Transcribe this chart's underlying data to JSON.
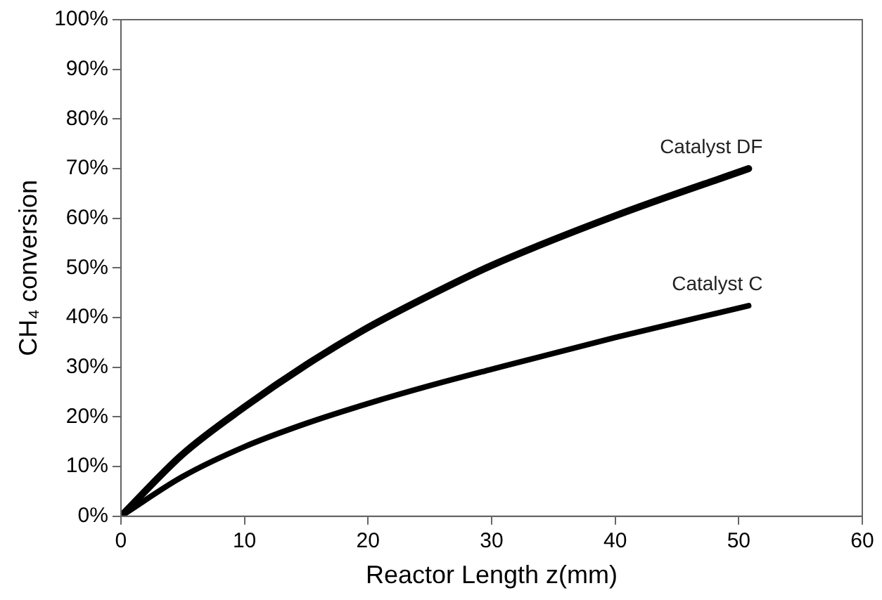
{
  "chart_data": {
    "type": "line",
    "xlabel": "Reactor Length z(mm)",
    "ylabel": "CH₄ conversion",
    "xlim": [
      0,
      60
    ],
    "xticks": [
      0,
      10,
      20,
      30,
      40,
      50,
      60
    ],
    "ylim": [
      0,
      100
    ],
    "yticks": [
      {
        "value": 0,
        "label": "0%"
      },
      {
        "value": 10,
        "label": "10%"
      },
      {
        "value": 20,
        "label": "20%"
      },
      {
        "value": 30,
        "label": "30%"
      },
      {
        "value": 40,
        "label": "40%"
      },
      {
        "value": 50,
        "label": "50%"
      },
      {
        "value": 60,
        "label": "60%"
      },
      {
        "value": 70,
        "label": "70%"
      },
      {
        "value": 80,
        "label": "80%"
      },
      {
        "value": 90,
        "label": "90%"
      },
      {
        "value": 100,
        "label": "100%"
      }
    ],
    "grid": false,
    "legend": false,
    "marker": "none",
    "line_style": "solid",
    "series": [
      {
        "name": "Catalyst DF",
        "color": "#000000",
        "x": [
          0,
          5,
          10,
          15,
          20,
          25,
          30,
          40,
          50.8
        ],
        "values": [
          0,
          12.5,
          22,
          30.5,
          38,
          44.5,
          50.5,
          60.5,
          70
        ]
      },
      {
        "name": "Catalyst C",
        "color": "#000000",
        "x": [
          0,
          5,
          10,
          15,
          20,
          25,
          30,
          40,
          50.8
        ],
        "values": [
          0,
          8,
          14,
          18.7,
          22.7,
          26.3,
          29.6,
          36,
          42.4
        ]
      }
    ]
  }
}
